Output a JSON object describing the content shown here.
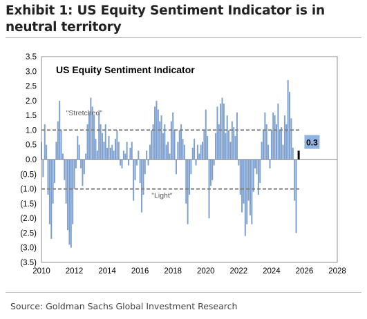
{
  "exhibit": {
    "title": "Exhibit 1: US Equity Sentiment Indicator is in neutral territory",
    "source": "Source: Goldman Sachs Global Investment Research"
  },
  "chart_data": {
    "type": "bar",
    "title": "US Equity Sentiment Indicator",
    "xlabel": "",
    "ylabel": "",
    "xlim": [
      2010,
      2028
    ],
    "ylim": [
      -3.5,
      3.5
    ],
    "x_ticks": [
      2010,
      2012,
      2014,
      2016,
      2018,
      2020,
      2022,
      2024,
      2026,
      2028
    ],
    "y_ticks": [
      3.5,
      3.0,
      2.5,
      2.0,
      1.5,
      1.0,
      0.5,
      0.0,
      -0.5,
      -1.0,
      -1.5,
      -2.0,
      -2.5,
      -3.0,
      -3.5
    ],
    "y_tick_labels": [
      "3.5",
      "3.0",
      "2.5",
      "2.0",
      "1.5",
      "1.0",
      "0.5",
      "0.0",
      "(0.5)",
      "(1.0)",
      "(1.5)",
      "(2.0)",
      "(2.5)",
      "(3.0)",
      "(3.5)"
    ],
    "grid": false,
    "bar_color": "#7ea1cf",
    "threshold_color": "#7f7f7f",
    "thresholds": [
      {
        "value": 1.0,
        "label": "\"Stretched\"",
        "label_x": 2011.5,
        "label_y": 1.5
      },
      {
        "value": -1.0,
        "label": "\"Light\"",
        "label_x": 2016.7,
        "label_y": -1.3
      }
    ],
    "latest": {
      "x": 2025.65,
      "value": 0.3,
      "label": "0.3",
      "marker_color": "#000000",
      "label_bg": "#8fb4e3"
    },
    "series": [
      {
        "x": [
          2010.0,
          2010.1,
          2010.2,
          2010.3,
          2010.4,
          2010.5,
          2010.6,
          2010.7,
          2010.8,
          2010.9,
          2011.0,
          2011.1,
          2011.2,
          2011.3,
          2011.4,
          2011.5,
          2011.6,
          2011.7,
          2011.8,
          2011.9,
          2012.0,
          2012.1,
          2012.2,
          2012.3,
          2012.4,
          2012.5,
          2012.6,
          2012.7,
          2012.8,
          2012.9,
          2013.0,
          2013.1,
          2013.2,
          2013.3,
          2013.4,
          2013.5,
          2013.6,
          2013.7,
          2013.8,
          2013.9,
          2014.0,
          2014.1,
          2014.2,
          2014.3,
          2014.4,
          2014.5,
          2014.6,
          2014.7,
          2014.8,
          2014.9,
          2015.0,
          2015.1,
          2015.2,
          2015.3,
          2015.4,
          2015.5,
          2015.6,
          2015.7,
          2015.8,
          2015.9,
          2016.0,
          2016.1,
          2016.2,
          2016.3,
          2016.4,
          2016.5,
          2016.6,
          2016.7,
          2016.8,
          2016.9,
          2017.0,
          2017.1,
          2017.2,
          2017.3,
          2017.4,
          2017.5,
          2017.6,
          2017.7,
          2017.8,
          2017.9,
          2018.0,
          2018.1,
          2018.2,
          2018.3,
          2018.4,
          2018.5,
          2018.6,
          2018.7,
          2018.8,
          2018.9,
          2019.0,
          2019.1,
          2019.2,
          2019.3,
          2019.4,
          2019.5,
          2019.6,
          2019.7,
          2019.8,
          2019.9,
          2020.0,
          2020.1,
          2020.2,
          2020.3,
          2020.4,
          2020.5,
          2020.6,
          2020.7,
          2020.8,
          2020.9,
          2021.0,
          2021.1,
          2021.2,
          2021.3,
          2021.4,
          2021.5,
          2021.6,
          2021.7,
          2021.8,
          2021.9,
          2022.0,
          2022.1,
          2022.2,
          2022.3,
          2022.4,
          2022.5,
          2022.6,
          2022.7,
          2022.8,
          2022.9,
          2023.0,
          2023.1,
          2023.2,
          2023.3,
          2023.4,
          2023.5,
          2023.6,
          2023.7,
          2023.8,
          2023.9,
          2024.0,
          2024.1,
          2024.2,
          2024.3,
          2024.4,
          2024.5,
          2024.6,
          2024.7,
          2024.8,
          2024.9,
          2025.0,
          2025.1,
          2025.2,
          2025.3,
          2025.4,
          2025.5
        ],
        "values": [
          0.6,
          -0.6,
          1.2,
          0.5,
          -1.2,
          -2.2,
          -2.7,
          -1.5,
          -0.8,
          0.6,
          1.3,
          2.0,
          1.0,
          0.2,
          -0.7,
          -1.5,
          -2.4,
          -2.9,
          -3.0,
          -2.2,
          -1.0,
          -0.3,
          0.8,
          0.5,
          -0.3,
          -0.9,
          -0.5,
          0.2,
          1.2,
          1.6,
          2.1,
          1.8,
          1.5,
          0.7,
          0.3,
          1.6,
          1.2,
          0.9,
          0.6,
          1.2,
          0.4,
          0.8,
          0.4,
          0.5,
          0.3,
          0.7,
          1.0,
          0.6,
          -0.2,
          -0.3,
          0.3,
          0.2,
          0.6,
          -0.2,
          0.4,
          0.6,
          -1.4,
          -0.7,
          -0.2,
          0.3,
          -0.8,
          -1.8,
          -1.2,
          -0.5,
          0.3,
          -0.2,
          0.5,
          1.0,
          1.2,
          1.8,
          2.0,
          1.7,
          1.3,
          1.5,
          0.9,
          1.2,
          0.5,
          0.6,
          0.2,
          1.3,
          1.6,
          1.0,
          -0.5,
          0.6,
          1.0,
          1.2,
          0.7,
          0.5,
          -1.5,
          -2.2,
          -1.2,
          -0.5,
          0.4,
          0.7,
          -0.2,
          0.5,
          0.2,
          0.5,
          0.6,
          1.0,
          1.7,
          0.8,
          -2.0,
          -0.9,
          -0.7,
          -0.2,
          0.9,
          1.8,
          1.2,
          1.9,
          2.1,
          1.9,
          0.9,
          1.5,
          1.0,
          0.6,
          1.3,
          1.1,
          0.8,
          1.6,
          -0.2,
          -1.2,
          -1.8,
          -1.5,
          -2.6,
          -2.2,
          -1.4,
          -1.9,
          -2.2,
          -1.1,
          -0.3,
          -0.5,
          -1.2,
          -0.8,
          0.6,
          1.0,
          1.6,
          1.2,
          0.5,
          -0.3,
          1.0,
          1.6,
          1.5,
          1.2,
          1.9,
          1.0,
          1.1,
          0.5,
          1.5,
          1.2,
          2.7,
          2.3,
          1.4,
          0.4,
          -1.4,
          -2.5
        ]
      }
    ]
  }
}
